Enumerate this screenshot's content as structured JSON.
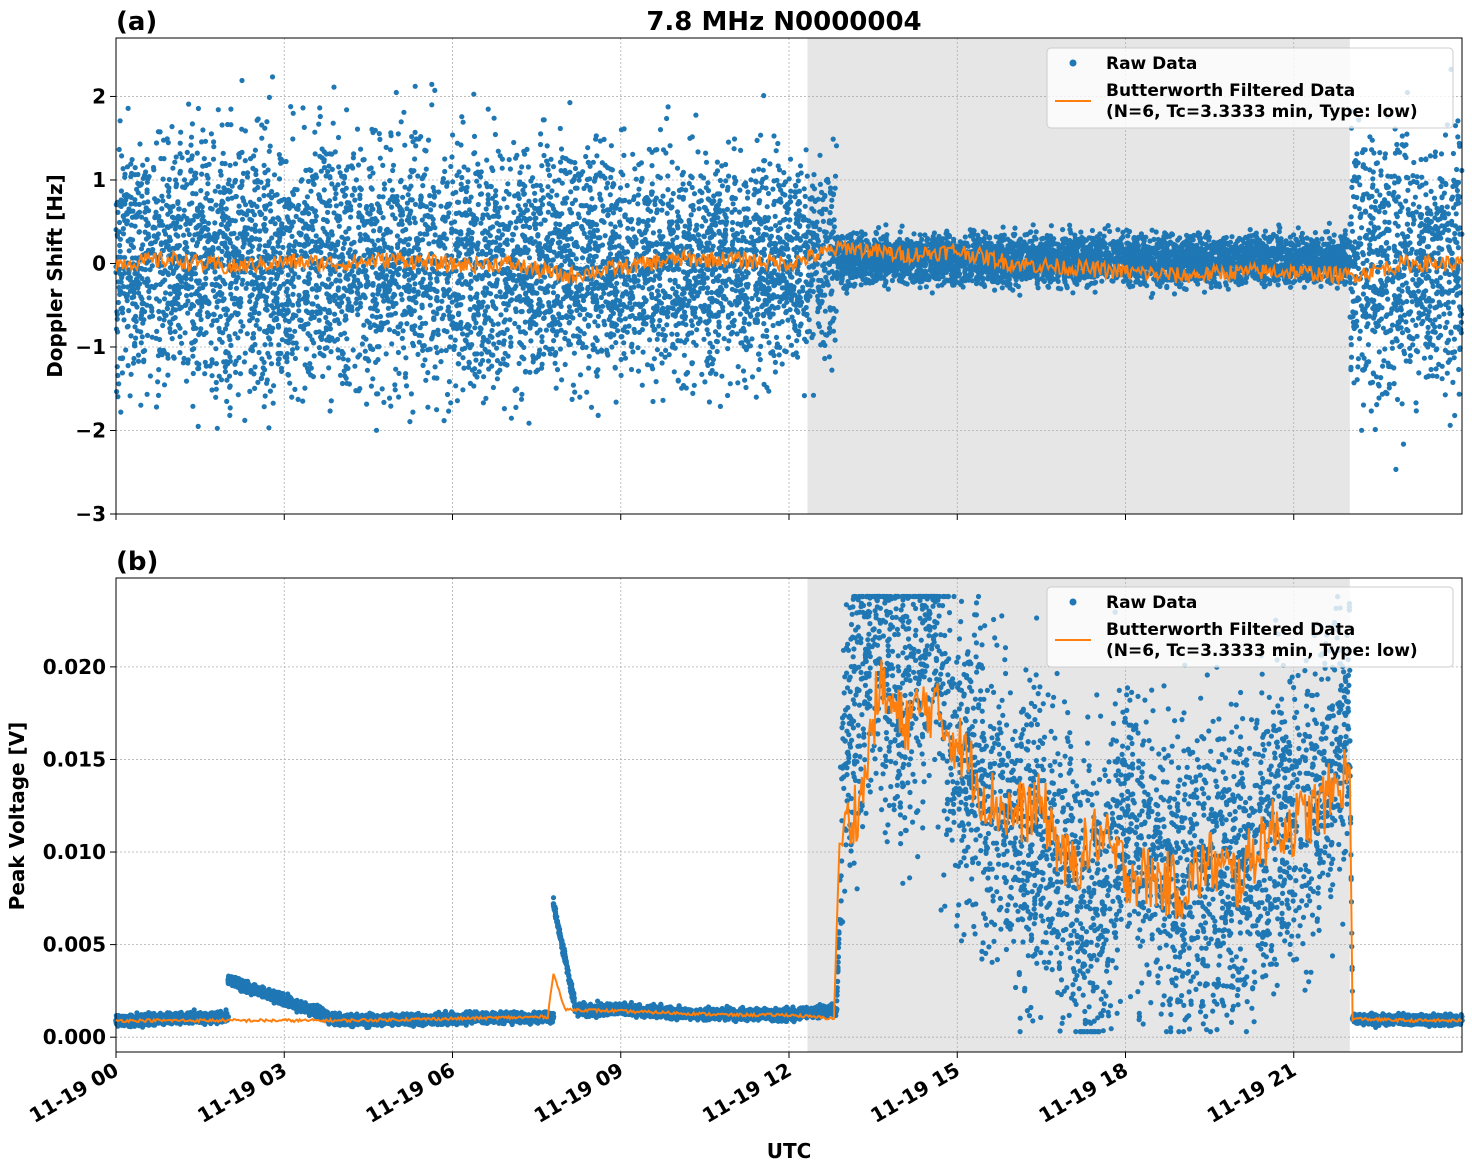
{
  "figure": {
    "title": "7.8 MHz N0000004",
    "xlabel": "UTC",
    "xticks": [
      "11-19 00",
      "11-19 03",
      "11-19 06",
      "11-19 09",
      "11-19 12",
      "11-19 15",
      "11-19 18",
      "11-19 21"
    ],
    "x_range_hours": [
      0,
      24
    ],
    "shaded_interval_hours": [
      12.33,
      22.0
    ],
    "colors": {
      "raw": "#1f77b4",
      "filtered": "#ff7f0e",
      "shade": "#e6e6e6",
      "grid": "#b0b0b0"
    }
  },
  "legend": {
    "raw_label": "Raw Data",
    "filtered_label_1": "Butterworth Filtered Data",
    "filtered_label_2": "(N=6, Tc=3.3333 min, Type: low)"
  },
  "chart_data": [
    {
      "panel": "(a)",
      "type": "scatter",
      "title": "7.8 MHz N0000004",
      "xlabel": "UTC",
      "ylabel": "Doppler Shift [Hz]",
      "ylim": [
        -3.0,
        2.7
      ],
      "yticks": [
        -3,
        -2,
        -1,
        0,
        1,
        2
      ],
      "ytick_labels": [
        "−3",
        "−2",
        "−1",
        "0",
        "1",
        "2"
      ],
      "grid": true,
      "legend_position": "top-right",
      "series": [
        {
          "name": "Raw Data",
          "description_segments": [
            {
              "x_hours": [
                0.0,
                7.8
              ],
              "center_hz": 0.0,
              "spread_hz": 1.25
            },
            {
              "x_hours": [
                7.8,
                12.85
              ],
              "center_hz": 0.0,
              "spread_hz": 1.1
            },
            {
              "x_hours": [
                12.85,
                22.0
              ],
              "center_hz": 0.05,
              "spread_hz": 0.25
            },
            {
              "x_hours": [
                22.0,
                24.0
              ],
              "center_hz": 0.0,
              "spread_hz": 1.3
            }
          ]
        },
        {
          "name": "Butterworth Filtered Data (N=6, Tc=3.3333 min, Type: low)",
          "points": [
            [
              0,
              0.0
            ],
            [
              1,
              0.05
            ],
            [
              2,
              -0.05
            ],
            [
              3,
              0.02
            ],
            [
              4,
              0.0
            ],
            [
              5,
              0.05
            ],
            [
              6,
              -0.02
            ],
            [
              7,
              0.0
            ],
            [
              8,
              -0.15
            ],
            [
              9,
              -0.05
            ],
            [
              10,
              0.05
            ],
            [
              11,
              0.05
            ],
            [
              12,
              0.0
            ],
            [
              13,
              0.2
            ],
            [
              14,
              0.1
            ],
            [
              15,
              0.15
            ],
            [
              16,
              0.0
            ],
            [
              17,
              -0.05
            ],
            [
              18,
              -0.1
            ],
            [
              19,
              -0.15
            ],
            [
              20,
              -0.1
            ],
            [
              21,
              -0.1
            ],
            [
              22,
              -0.15
            ],
            [
              23,
              0.0
            ],
            [
              24,
              0.0
            ]
          ]
        }
      ]
    },
    {
      "panel": "(b)",
      "type": "scatter",
      "xlabel": "UTC",
      "ylabel": "Peak Voltage [V]",
      "ylim": [
        -0.0008,
        0.0248
      ],
      "yticks": [
        0.0,
        0.005,
        0.01,
        0.015,
        0.02
      ],
      "ytick_labels": [
        "0.000",
        "0.005",
        "0.010",
        "0.015",
        "0.020"
      ],
      "grid": true,
      "legend_position": "top-right",
      "series": [
        {
          "name": "Raw Data",
          "points": [
            [
              0,
              0.0009
            ],
            [
              2.0,
              0.0011
            ],
            [
              2.0,
              0.0031
            ],
            [
              4,
              0.0009
            ],
            [
              6,
              0.001
            ],
            [
              7.8,
              0.0011
            ],
            [
              7.8,
              0.0072
            ],
            [
              8.2,
              0.0015
            ],
            [
              9,
              0.0015
            ],
            [
              10,
              0.0013
            ],
            [
              12,
              0.0012
            ],
            [
              12.85,
              0.0015
            ],
            [
              13.0,
              0.016
            ],
            [
              13.5,
              0.022
            ],
            [
              14,
              0.018
            ],
            [
              14.5,
              0.023
            ],
            [
              15,
              0.015
            ],
            [
              16,
              0.012
            ],
            [
              17,
              0.009
            ],
            [
              17.3,
              0.005
            ],
            [
              18,
              0.012
            ],
            [
              19,
              0.008
            ],
            [
              20,
              0.009
            ],
            [
              21,
              0.012
            ],
            [
              22,
              0.016
            ],
            [
              22.05,
              0.001
            ],
            [
              24,
              0.0009
            ]
          ]
        },
        {
          "name": "Butterworth Filtered Data (N=6, Tc=3.3333 min, Type: low)",
          "points": [
            [
              0,
              0.0009
            ],
            [
              2,
              0.0009
            ],
            [
              4,
              0.0009
            ],
            [
              6,
              0.001
            ],
            [
              7.7,
              0.0011
            ],
            [
              7.8,
              0.0035
            ],
            [
              8.0,
              0.0015
            ],
            [
              9,
              0.0014
            ],
            [
              10,
              0.0013
            ],
            [
              11,
              0.0012
            ],
            [
              12,
              0.0012
            ],
            [
              12.8,
              0.001
            ],
            [
              12.9,
              0.0105
            ],
            [
              13.3,
              0.013
            ],
            [
              13.6,
              0.019
            ],
            [
              14,
              0.017
            ],
            [
              14.5,
              0.018
            ],
            [
              15,
              0.016
            ],
            [
              15.5,
              0.013
            ],
            [
              16,
              0.012
            ],
            [
              16.5,
              0.0125
            ],
            [
              17,
              0.009
            ],
            [
              17.5,
              0.011
            ],
            [
              18,
              0.009
            ],
            [
              18.5,
              0.0085
            ],
            [
              19,
              0.008
            ],
            [
              19.5,
              0.0095
            ],
            [
              20,
              0.0085
            ],
            [
              20.5,
              0.011
            ],
            [
              21,
              0.0115
            ],
            [
              21.5,
              0.0125
            ],
            [
              22,
              0.0145
            ],
            [
              22.05,
              0.001
            ],
            [
              23,
              0.0009
            ],
            [
              24,
              0.0009
            ]
          ]
        }
      ]
    }
  ]
}
